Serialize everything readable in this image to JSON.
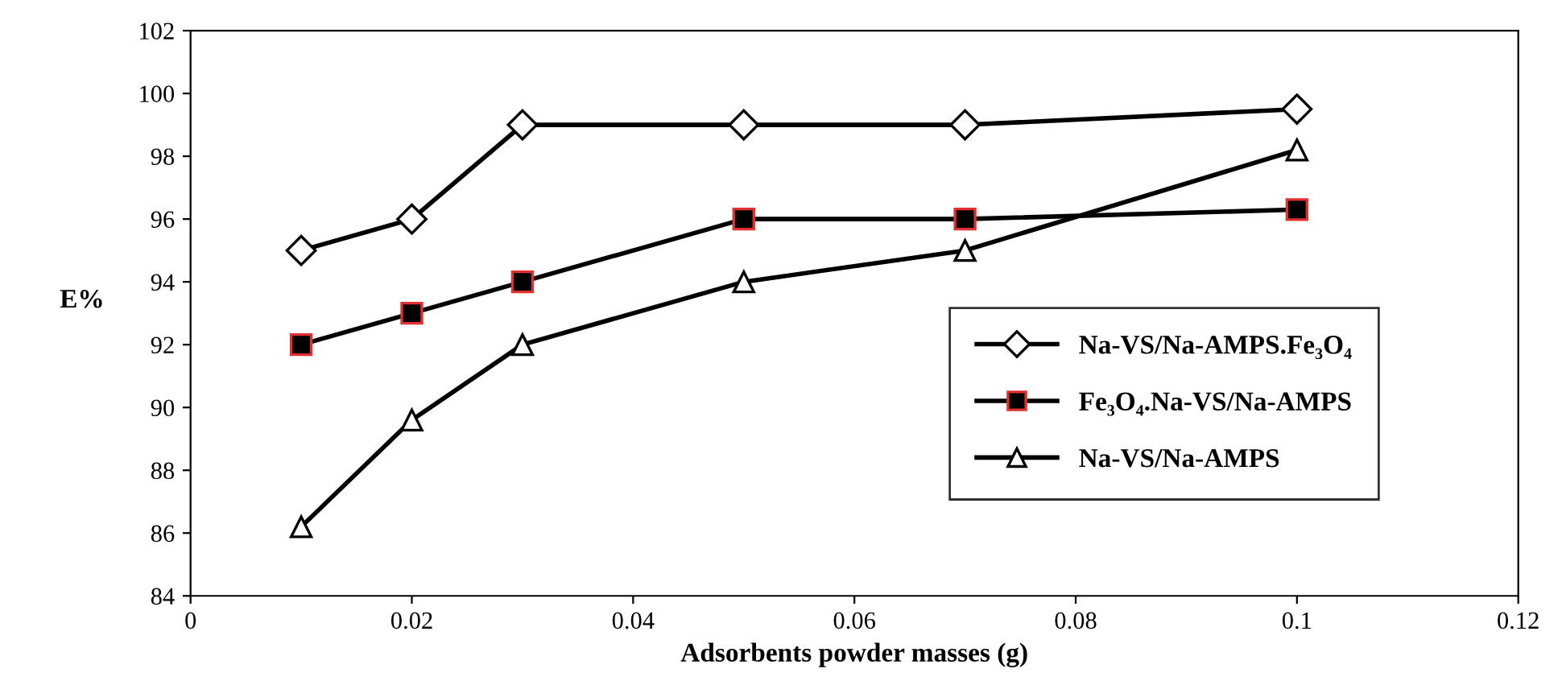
{
  "chart_data": {
    "type": "line",
    "xlabel": "Adsorbents powder masses (g)",
    "ylabel": "E%",
    "x": [
      0.01,
      0.02,
      0.03,
      0.05,
      0.07,
      0.1
    ],
    "series": [
      {
        "name": "Na-VS/Na-AMPS.Fe₃O₄",
        "color": "#000000",
        "marker": "diamond",
        "values": [
          95,
          96,
          99,
          99,
          99,
          99.5
        ]
      },
      {
        "name": "Fe₃O₄.Na-VS/Na-AMPS",
        "color": "#000000",
        "marker": "square",
        "values": [
          92,
          93,
          94,
          96,
          96,
          96.3
        ]
      },
      {
        "name": "Na-VS/Na-AMPS",
        "color": "#000000",
        "marker": "triangle",
        "values": [
          86.2,
          89.6,
          92,
          94,
          95,
          98.2
        ]
      }
    ],
    "xlim": [
      0,
      0.12
    ],
    "xticks": [
      0,
      0.02,
      0.04,
      0.06,
      0.08,
      0.1,
      0.12
    ],
    "ylim": [
      84,
      102
    ],
    "yticks": [
      84,
      86,
      88,
      90,
      92,
      94,
      96,
      98,
      100,
      102
    ],
    "legend": "right",
    "grid": false,
    "line_style": "solid"
  }
}
